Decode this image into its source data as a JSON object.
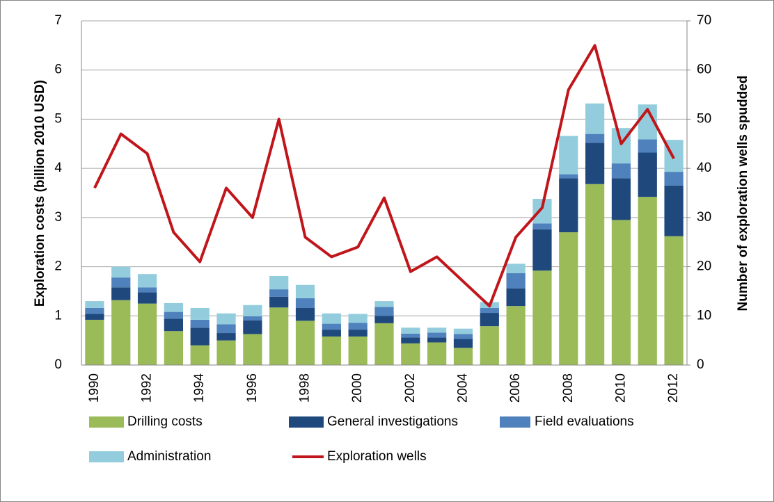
{
  "chart_data": {
    "type": "bar",
    "y_label": "Exploration costs (billion 2010 USD)",
    "y2_label": "Number of exploration wells spudded",
    "stacked": true,
    "categories": [
      "1990",
      null,
      "1992",
      null,
      "1994",
      null,
      "1996",
      null,
      "1998",
      null,
      "2000",
      null,
      "2002",
      null,
      "2004",
      null,
      "2006",
      null,
      "2008",
      null,
      "2010",
      null,
      "2012"
    ],
    "series": [
      {
        "name": "Drilling costs",
        "color": "#9bbb59",
        "values": [
          0.92,
          1.32,
          1.25,
          0.69,
          0.4,
          0.5,
          0.63,
          1.17,
          0.9,
          0.58,
          0.58,
          0.85,
          0.44,
          0.46,
          0.35,
          0.79,
          1.2,
          1.92,
          2.7,
          3.68,
          2.95,
          3.42,
          2.62
        ]
      },
      {
        "name": "General investigations",
        "color": "#1f497d",
        "values": [
          0.12,
          0.26,
          0.23,
          0.25,
          0.36,
          0.15,
          0.28,
          0.22,
          0.26,
          0.14,
          0.14,
          0.15,
          0.12,
          0.1,
          0.18,
          0.27,
          0.36,
          0.84,
          1.1,
          0.84,
          0.85,
          0.9,
          1.03
        ]
      },
      {
        "name": "Field evaluations",
        "color": "#4f81bd",
        "values": [
          0.12,
          0.2,
          0.1,
          0.14,
          0.16,
          0.18,
          0.08,
          0.15,
          0.2,
          0.12,
          0.14,
          0.18,
          0.08,
          0.1,
          0.1,
          0.1,
          0.31,
          0.12,
          0.08,
          0.18,
          0.3,
          0.27,
          0.28
        ]
      },
      {
        "name": "Administration",
        "color": "#93cddd",
        "values": [
          0.14,
          0.22,
          0.27,
          0.18,
          0.24,
          0.22,
          0.23,
          0.27,
          0.27,
          0.21,
          0.18,
          0.12,
          0.12,
          0.1,
          0.11,
          0.12,
          0.19,
          0.5,
          0.78,
          0.62,
          0.72,
          0.71,
          0.65
        ]
      },
      {
        "name": "Exploration wells",
        "type": "line",
        "axis": "y2",
        "color": "#c0161b",
        "values": [
          36,
          47,
          43,
          27,
          21,
          36,
          30,
          50,
          26,
          22,
          24,
          34,
          19,
          22,
          17,
          12,
          26,
          32,
          56,
          65,
          45,
          52,
          42
        ]
      }
    ],
    "ylim": [
      0,
      7
    ],
    "yticks": [
      0,
      1,
      2,
      3,
      4,
      5,
      6,
      7
    ],
    "y2lim": [
      0,
      70
    ],
    "y2ticks": [
      0,
      10,
      20,
      30,
      40,
      50,
      60,
      70
    ],
    "grid": true,
    "legend": "bottom"
  }
}
